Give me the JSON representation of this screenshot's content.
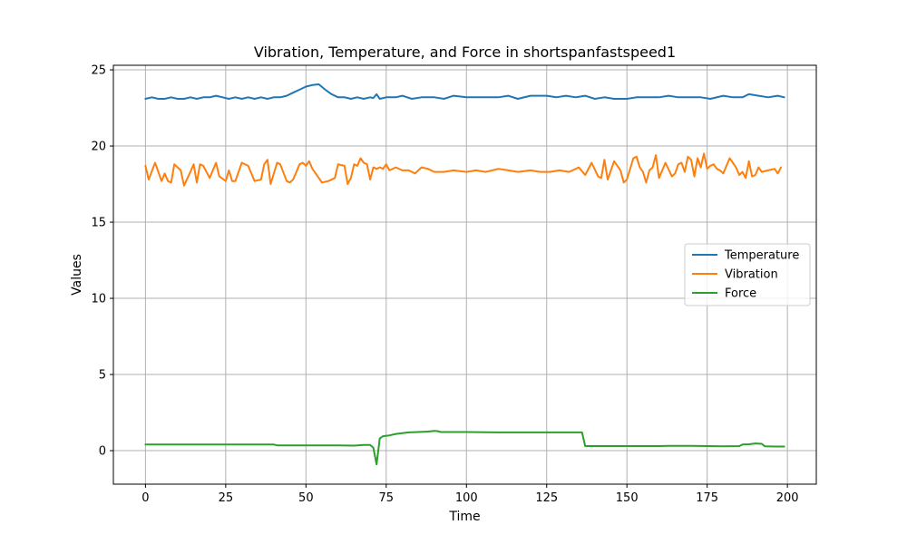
{
  "chart_data": {
    "type": "line",
    "title": "Vibration, Temperature, and Force in shortspanfastspeed1",
    "xlabel": "Time",
    "ylabel": "Values",
    "xlim": [
      -10,
      209
    ],
    "ylim": [
      -2.2,
      25.3
    ],
    "xticks": [
      0,
      25,
      50,
      75,
      100,
      125,
      150,
      175,
      200
    ],
    "yticks": [
      0,
      5,
      10,
      15,
      20,
      25
    ],
    "grid": true,
    "legend_position": "center-right",
    "series": [
      {
        "name": "Temperature",
        "color": "#1f77b4",
        "points": [
          [
            0,
            23.1
          ],
          [
            2,
            23.2
          ],
          [
            4,
            23.1
          ],
          [
            6,
            23.1
          ],
          [
            8,
            23.2
          ],
          [
            10,
            23.1
          ],
          [
            12,
            23.1
          ],
          [
            14,
            23.2
          ],
          [
            16,
            23.1
          ],
          [
            18,
            23.2
          ],
          [
            20,
            23.2
          ],
          [
            22,
            23.3
          ],
          [
            24,
            23.2
          ],
          [
            26,
            23.1
          ],
          [
            28,
            23.2
          ],
          [
            30,
            23.1
          ],
          [
            32,
            23.2
          ],
          [
            34,
            23.1
          ],
          [
            36,
            23.2
          ],
          [
            38,
            23.1
          ],
          [
            40,
            23.2
          ],
          [
            42,
            23.2
          ],
          [
            44,
            23.3
          ],
          [
            46,
            23.5
          ],
          [
            48,
            23.7
          ],
          [
            50,
            23.9
          ],
          [
            52,
            24.0
          ],
          [
            54,
            24.05
          ],
          [
            56,
            23.7
          ],
          [
            58,
            23.4
          ],
          [
            60,
            23.2
          ],
          [
            62,
            23.2
          ],
          [
            64,
            23.1
          ],
          [
            66,
            23.2
          ],
          [
            68,
            23.1
          ],
          [
            70,
            23.2
          ],
          [
            71,
            23.15
          ],
          [
            72,
            23.4
          ],
          [
            73,
            23.1
          ],
          [
            75,
            23.2
          ],
          [
            78,
            23.2
          ],
          [
            80,
            23.3
          ],
          [
            83,
            23.1
          ],
          [
            86,
            23.2
          ],
          [
            90,
            23.2
          ],
          [
            93,
            23.1
          ],
          [
            96,
            23.3
          ],
          [
            100,
            23.2
          ],
          [
            103,
            23.2
          ],
          [
            106,
            23.2
          ],
          [
            110,
            23.2
          ],
          [
            113,
            23.3
          ],
          [
            116,
            23.1
          ],
          [
            120,
            23.3
          ],
          [
            125,
            23.3
          ],
          [
            128,
            23.2
          ],
          [
            131,
            23.3
          ],
          [
            134,
            23.2
          ],
          [
            137,
            23.3
          ],
          [
            140,
            23.1
          ],
          [
            143,
            23.2
          ],
          [
            146,
            23.1
          ],
          [
            150,
            23.1
          ],
          [
            153,
            23.2
          ],
          [
            156,
            23.2
          ],
          [
            160,
            23.2
          ],
          [
            163,
            23.3
          ],
          [
            166,
            23.2
          ],
          [
            170,
            23.2
          ],
          [
            173,
            23.2
          ],
          [
            176,
            23.1
          ],
          [
            180,
            23.3
          ],
          [
            183,
            23.2
          ],
          [
            186,
            23.2
          ],
          [
            188,
            23.4
          ],
          [
            191,
            23.3
          ],
          [
            194,
            23.2
          ],
          [
            197,
            23.3
          ],
          [
            199,
            23.2
          ]
        ]
      },
      {
        "name": "Vibration",
        "color": "#ff7f0e",
        "points": [
          [
            0,
            18.7
          ],
          [
            1,
            17.8
          ],
          [
            3,
            18.9
          ],
          [
            5,
            17.7
          ],
          [
            6,
            18.2
          ],
          [
            7,
            17.7
          ],
          [
            8,
            17.6
          ],
          [
            9,
            18.8
          ],
          [
            11,
            18.4
          ],
          [
            12,
            17.4
          ],
          [
            14,
            18.3
          ],
          [
            15,
            18.8
          ],
          [
            16,
            17.6
          ],
          [
            17,
            18.8
          ],
          [
            18,
            18.7
          ],
          [
            20,
            17.9
          ],
          [
            22,
            18.9
          ],
          [
            23,
            18.0
          ],
          [
            25,
            17.7
          ],
          [
            26,
            18.4
          ],
          [
            27,
            17.7
          ],
          [
            28,
            17.7
          ],
          [
            30,
            18.9
          ],
          [
            32,
            18.7
          ],
          [
            34,
            17.7
          ],
          [
            36,
            17.8
          ],
          [
            37,
            18.8
          ],
          [
            38,
            19.1
          ],
          [
            39,
            17.5
          ],
          [
            41,
            18.9
          ],
          [
            42,
            18.8
          ],
          [
            44,
            17.7
          ],
          [
            45,
            17.6
          ],
          [
            46,
            17.8
          ],
          [
            48,
            18.8
          ],
          [
            49,
            18.9
          ],
          [
            50,
            18.7
          ],
          [
            51,
            19.0
          ],
          [
            52,
            18.5
          ],
          [
            54,
            17.9
          ],
          [
            55,
            17.6
          ],
          [
            57,
            17.7
          ],
          [
            59,
            17.9
          ],
          [
            60,
            18.8
          ],
          [
            62,
            18.7
          ],
          [
            63,
            17.5
          ],
          [
            64,
            17.9
          ],
          [
            65,
            18.8
          ],
          [
            66,
            18.7
          ],
          [
            67,
            19.2
          ],
          [
            68,
            18.9
          ],
          [
            69,
            18.8
          ],
          [
            70,
            17.8
          ],
          [
            71,
            18.6
          ],
          [
            72,
            18.5
          ],
          [
            73,
            18.6
          ],
          [
            74,
            18.5
          ],
          [
            75,
            18.8
          ],
          [
            76,
            18.4
          ],
          [
            78,
            18.6
          ],
          [
            80,
            18.4
          ],
          [
            82,
            18.4
          ],
          [
            84,
            18.2
          ],
          [
            86,
            18.6
          ],
          [
            88,
            18.5
          ],
          [
            90,
            18.3
          ],
          [
            93,
            18.3
          ],
          [
            96,
            18.4
          ],
          [
            100,
            18.3
          ],
          [
            103,
            18.4
          ],
          [
            106,
            18.3
          ],
          [
            110,
            18.5
          ],
          [
            113,
            18.4
          ],
          [
            116,
            18.3
          ],
          [
            120,
            18.4
          ],
          [
            123,
            18.3
          ],
          [
            126,
            18.3
          ],
          [
            129,
            18.4
          ],
          [
            132,
            18.3
          ],
          [
            135,
            18.6
          ],
          [
            137,
            18.1
          ],
          [
            139,
            18.9
          ],
          [
            141,
            18.0
          ],
          [
            142,
            17.9
          ],
          [
            143,
            19.1
          ],
          [
            144,
            17.8
          ],
          [
            146,
            19.0
          ],
          [
            148,
            18.4
          ],
          [
            149,
            17.6
          ],
          [
            150,
            17.8
          ],
          [
            152,
            19.2
          ],
          [
            153,
            19.3
          ],
          [
            154,
            18.6
          ],
          [
            155,
            18.3
          ],
          [
            156,
            17.6
          ],
          [
            157,
            18.4
          ],
          [
            158,
            18.6
          ],
          [
            159,
            19.4
          ],
          [
            160,
            17.9
          ],
          [
            162,
            18.9
          ],
          [
            164,
            18.0
          ],
          [
            165,
            18.2
          ],
          [
            166,
            18.8
          ],
          [
            167,
            18.9
          ],
          [
            168,
            18.3
          ],
          [
            169,
            19.3
          ],
          [
            170,
            19.1
          ],
          [
            171,
            18.0
          ],
          [
            172,
            19.2
          ],
          [
            173,
            18.6
          ],
          [
            174,
            19.5
          ],
          [
            175,
            18.5
          ],
          [
            176,
            18.7
          ],
          [
            177,
            18.8
          ],
          [
            178,
            18.5
          ],
          [
            179,
            18.4
          ],
          [
            180,
            18.2
          ],
          [
            182,
            19.2
          ],
          [
            183,
            18.9
          ],
          [
            184,
            18.6
          ],
          [
            185,
            18.1
          ],
          [
            186,
            18.3
          ],
          [
            187,
            17.9
          ],
          [
            188,
            19.0
          ],
          [
            189,
            18.0
          ],
          [
            190,
            18.1
          ],
          [
            191,
            18.6
          ],
          [
            192,
            18.3
          ],
          [
            194,
            18.4
          ],
          [
            196,
            18.5
          ],
          [
            197,
            18.2
          ],
          [
            198,
            18.6
          ]
        ]
      },
      {
        "name": "Force",
        "color": "#2ca02c",
        "points": [
          [
            0,
            0.4
          ],
          [
            20,
            0.4
          ],
          [
            40,
            0.4
          ],
          [
            41,
            0.35
          ],
          [
            60,
            0.35
          ],
          [
            65,
            0.33
          ],
          [
            68,
            0.37
          ],
          [
            70,
            0.38
          ],
          [
            71,
            0.2
          ],
          [
            72,
            -0.9
          ],
          [
            73,
            0.8
          ],
          [
            74,
            0.95
          ],
          [
            76,
            1.0
          ],
          [
            78,
            1.1
          ],
          [
            80,
            1.15
          ],
          [
            82,
            1.2
          ],
          [
            85,
            1.22
          ],
          [
            88,
            1.25
          ],
          [
            90,
            1.3
          ],
          [
            91,
            1.28
          ],
          [
            92,
            1.22
          ],
          [
            100,
            1.22
          ],
          [
            110,
            1.2
          ],
          [
            120,
            1.2
          ],
          [
            130,
            1.2
          ],
          [
            136,
            1.2
          ],
          [
            137,
            0.3
          ],
          [
            150,
            0.3
          ],
          [
            160,
            0.3
          ],
          [
            163,
            0.32
          ],
          [
            166,
            0.31
          ],
          [
            170,
            0.32
          ],
          [
            175,
            0.3
          ],
          [
            180,
            0.28
          ],
          [
            185,
            0.3
          ],
          [
            186,
            0.4
          ],
          [
            188,
            0.42
          ],
          [
            190,
            0.47
          ],
          [
            192,
            0.45
          ],
          [
            193,
            0.28
          ],
          [
            196,
            0.27
          ],
          [
            199,
            0.27
          ]
        ]
      }
    ]
  }
}
